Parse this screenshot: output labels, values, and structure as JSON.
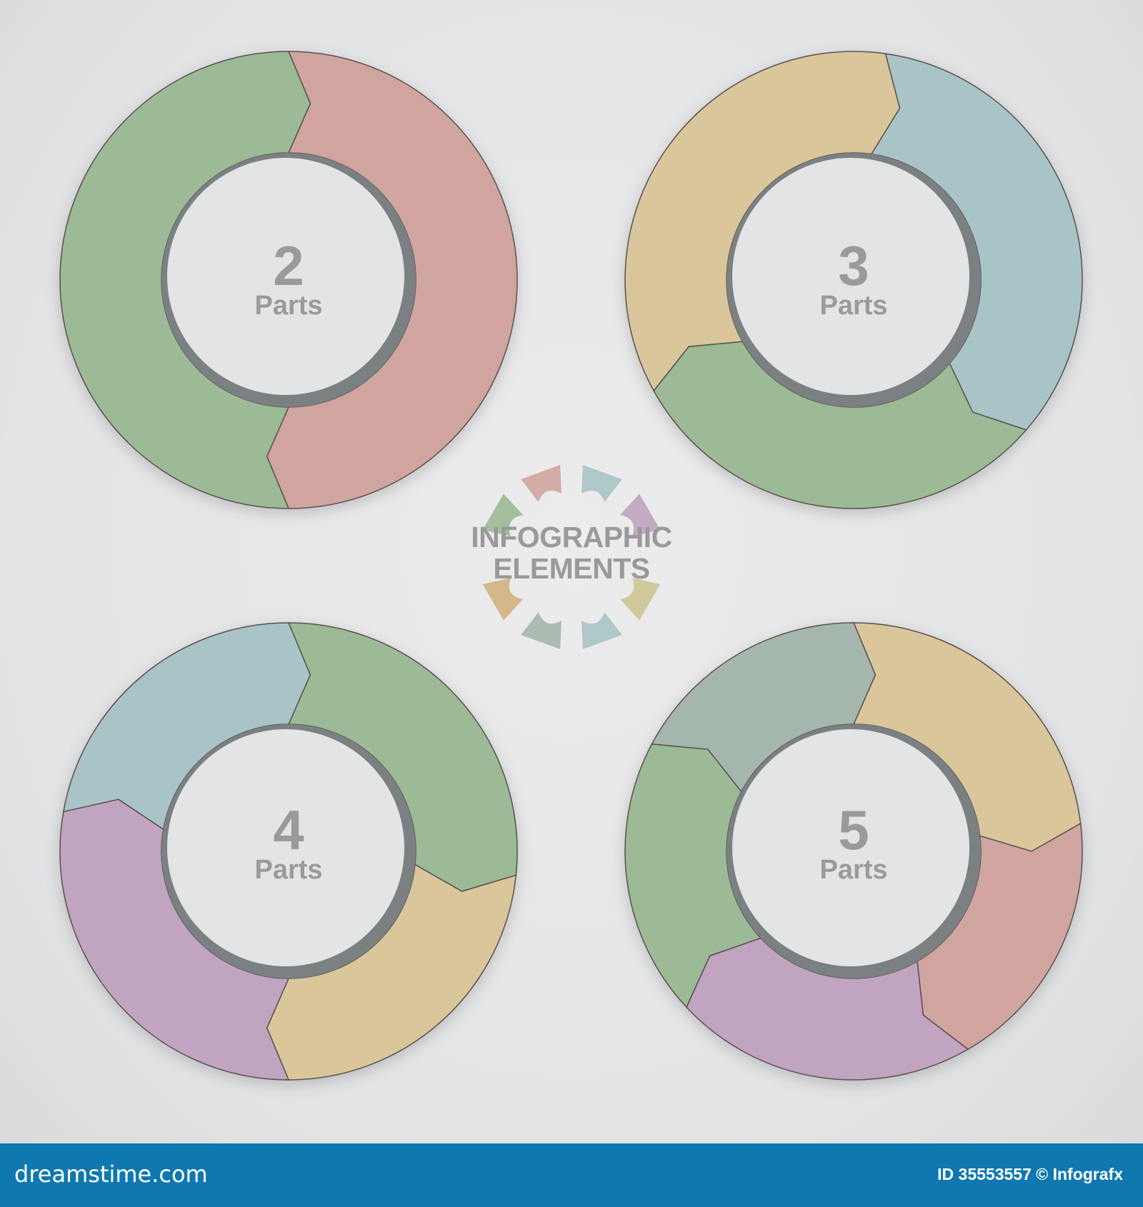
{
  "title": {
    "line1": "INFOGRAPHIC",
    "line2": "ELEMENTS"
  },
  "rings": [
    {
      "number": "2",
      "label": "Parts",
      "segments": [
        "#d0a59f",
        "#9bba95"
      ]
    },
    {
      "number": "3",
      "label": "Parts",
      "segments": [
        "#a9c4c6",
        "#9bba95",
        "#d9c69a"
      ]
    },
    {
      "number": "4",
      "label": "Parts",
      "segments": [
        "#9bba95",
        "#d9c69a",
        "#c0a4c0",
        "#a9c4c6"
      ]
    },
    {
      "number": "5",
      "label": "Parts",
      "segments": [
        "#d9c69a",
        "#d0a59f",
        "#c0a4c0",
        "#9bba95",
        "#a5b7ad"
      ]
    }
  ],
  "logo_colors": [
    "#d0a59f",
    "#a9c4c6",
    "#c0a4c0",
    "#9bba95",
    "#a5b7ad",
    "#a9c4c6",
    "#ccc593",
    "#d2b27e"
  ],
  "footer": {
    "brand": "dreamstime.com",
    "credit": "ID 35553557 © Infografx",
    "color": "#0f78b0"
  }
}
